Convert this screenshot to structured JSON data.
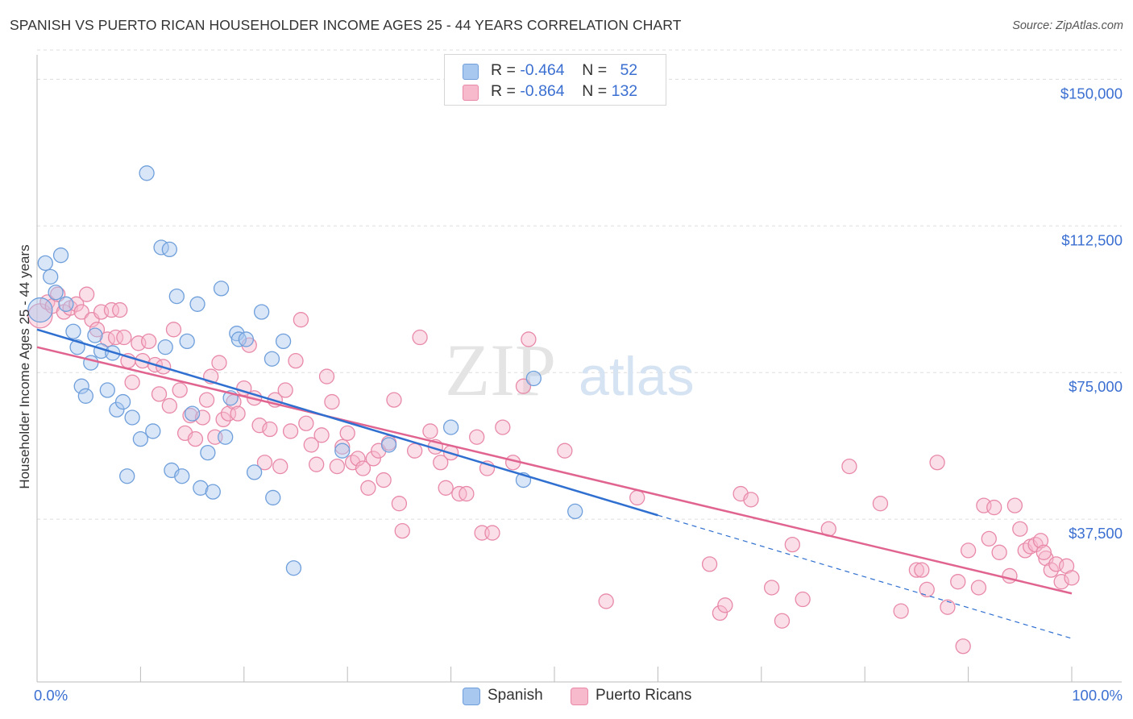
{
  "title": "SPANISH VS PUERTO RICAN HOUSEHOLDER INCOME AGES 25 - 44 YEARS CORRELATION CHART",
  "source": "Source: ZipAtlas.com",
  "watermark": {
    "zip": "ZIP",
    "atlas": "atlas"
  },
  "legend": {
    "rows": [
      {
        "r_label": "R =",
        "r_value": "-0.464",
        "n_label": "N =",
        "n_value": "52",
        "color": "#a8c8f0",
        "border": "#6f9fdb"
      },
      {
        "r_label": "R =",
        "r_value": "-0.864",
        "n_label": "N =",
        "n_value": "132",
        "color": "#f7b9cc",
        "border": "#e889a8"
      }
    ],
    "bottom": [
      {
        "name": "Spanish",
        "color": "#a8c8f0",
        "border": "#6f9fdb"
      },
      {
        "name": "Puerto Ricans",
        "color": "#f7b9cc",
        "border": "#e889a8"
      }
    ]
  },
  "chart_data": {
    "type": "scatter",
    "title": "SPANISH VS PUERTO RICAN HOUSEHOLDER INCOME AGES 25 - 44 YEARS CORRELATION CHART",
    "xlabel": "",
    "ylabel": "Householder Income Ages 25 - 44 years",
    "xlim": [
      0,
      100
    ],
    "ylim": [
      0,
      157500
    ],
    "x_tick_labels": [
      "0.0%",
      "100.0%"
    ],
    "y_ticks": [
      37500,
      75000,
      112500,
      150000
    ],
    "y_tick_labels": [
      "$37,500",
      "$75,000",
      "$112,500",
      "$150,000"
    ],
    "grid": true,
    "legend_position": "top-center",
    "series": [
      {
        "name": "Spanish",
        "color": "#6f9fdb",
        "fill": "#a8c8f0",
        "trend_color": "#2f6fd0",
        "trend": {
          "x0": 0,
          "y0": 86000,
          "x1": 60,
          "y1": 38500,
          "dash_to_x": 100,
          "dash_to_y": 7000
        },
        "points": [
          [
            0.3,
            91000
          ],
          [
            0.8,
            103000
          ],
          [
            1.3,
            99500
          ],
          [
            1.8,
            95500
          ],
          [
            2.3,
            105000
          ],
          [
            2.8,
            92500
          ],
          [
            3.5,
            85500
          ],
          [
            3.9,
            81500
          ],
          [
            4.3,
            71500
          ],
          [
            4.7,
            69000
          ],
          [
            5.2,
            77500
          ],
          [
            5.6,
            84500
          ],
          [
            6.2,
            80500
          ],
          [
            6.8,
            70500
          ],
          [
            7.3,
            80000
          ],
          [
            7.7,
            65500
          ],
          [
            8.3,
            67500
          ],
          [
            8.7,
            48500
          ],
          [
            9.2,
            63500
          ],
          [
            10.0,
            58000
          ],
          [
            10.6,
            126000
          ],
          [
            11.2,
            60000
          ],
          [
            12.0,
            107000
          ],
          [
            12.4,
            81500
          ],
          [
            12.8,
            106500
          ],
          [
            13.0,
            50000
          ],
          [
            13.5,
            94500
          ],
          [
            14.0,
            48500
          ],
          [
            14.5,
            83000
          ],
          [
            15.0,
            64500
          ],
          [
            15.5,
            92500
          ],
          [
            15.8,
            45500
          ],
          [
            16.5,
            54500
          ],
          [
            17.0,
            44500
          ],
          [
            17.8,
            96500
          ],
          [
            18.2,
            58500
          ],
          [
            18.7,
            68500
          ],
          [
            19.3,
            85000
          ],
          [
            19.5,
            83500
          ],
          [
            20.2,
            83500
          ],
          [
            21.0,
            49500
          ],
          [
            21.7,
            90500
          ],
          [
            22.7,
            78500
          ],
          [
            22.8,
            43000
          ],
          [
            23.8,
            83000
          ],
          [
            24.8,
            25000
          ],
          [
            29.5,
            55000
          ],
          [
            34.0,
            56500
          ],
          [
            40.0,
            61000
          ],
          [
            47.0,
            47500
          ],
          [
            48.0,
            73500
          ],
          [
            52.0,
            39500
          ]
        ]
      },
      {
        "name": "Puerto Ricans",
        "color": "#e889a8",
        "fill": "#f7b9cc",
        "trend_color": "#e0648f",
        "trend": {
          "x0": 0,
          "y0": 81500,
          "x1": 100,
          "y1": 18500
        },
        "points": [
          [
            0.3,
            89500
          ],
          [
            1.0,
            93000
          ],
          [
            1.5,
            92000
          ],
          [
            2.0,
            95000
          ],
          [
            2.6,
            90500
          ],
          [
            3.2,
            91500
          ],
          [
            3.8,
            92500
          ],
          [
            4.3,
            90500
          ],
          [
            4.8,
            95000
          ],
          [
            5.3,
            88500
          ],
          [
            5.8,
            86000
          ],
          [
            6.2,
            90500
          ],
          [
            6.8,
            83500
          ],
          [
            7.2,
            91000
          ],
          [
            7.6,
            84000
          ],
          [
            8.0,
            91000
          ],
          [
            8.4,
            84000
          ],
          [
            8.8,
            78000
          ],
          [
            9.2,
            72500
          ],
          [
            9.8,
            82500
          ],
          [
            10.2,
            78000
          ],
          [
            10.8,
            83000
          ],
          [
            11.4,
            77000
          ],
          [
            11.8,
            69500
          ],
          [
            12.2,
            76500
          ],
          [
            12.8,
            66500
          ],
          [
            13.2,
            86000
          ],
          [
            13.8,
            70500
          ],
          [
            14.3,
            59500
          ],
          [
            14.8,
            64000
          ],
          [
            15.3,
            58000
          ],
          [
            16.0,
            63500
          ],
          [
            16.4,
            68000
          ],
          [
            16.8,
            74000
          ],
          [
            17.2,
            58500
          ],
          [
            17.6,
            77500
          ],
          [
            18.0,
            63000
          ],
          [
            18.5,
            64500
          ],
          [
            19.0,
            67500
          ],
          [
            19.4,
            64500
          ],
          [
            20.0,
            71000
          ],
          [
            20.5,
            82000
          ],
          [
            21.0,
            68500
          ],
          [
            21.5,
            61500
          ],
          [
            22.0,
            52000
          ],
          [
            22.5,
            60500
          ],
          [
            23.0,
            68000
          ],
          [
            23.5,
            51000
          ],
          [
            24.0,
            70500
          ],
          [
            24.5,
            60000
          ],
          [
            25.0,
            78000
          ],
          [
            25.5,
            88500
          ],
          [
            26.0,
            62000
          ],
          [
            26.5,
            56500
          ],
          [
            27.0,
            51500
          ],
          [
            27.5,
            59000
          ],
          [
            28.0,
            74000
          ],
          [
            28.5,
            67500
          ],
          [
            29.0,
            51000
          ],
          [
            29.5,
            56000
          ],
          [
            30.0,
            59500
          ],
          [
            30.5,
            52000
          ],
          [
            31.0,
            53000
          ],
          [
            31.5,
            50500
          ],
          [
            32.0,
            45500
          ],
          [
            32.5,
            53000
          ],
          [
            33.0,
            55000
          ],
          [
            33.5,
            47500
          ],
          [
            34.0,
            57000
          ],
          [
            34.5,
            68000
          ],
          [
            35.0,
            41500
          ],
          [
            35.3,
            34500
          ],
          [
            36.5,
            55000
          ],
          [
            37.0,
            84000
          ],
          [
            38.0,
            60000
          ],
          [
            38.5,
            56000
          ],
          [
            39.0,
            52000
          ],
          [
            39.5,
            45500
          ],
          [
            40.0,
            54500
          ],
          [
            40.8,
            44000
          ],
          [
            41.5,
            44000
          ],
          [
            42.5,
            58500
          ],
          [
            43.0,
            34000
          ],
          [
            43.5,
            50500
          ],
          [
            44.0,
            34000
          ],
          [
            45.0,
            61000
          ],
          [
            46.0,
            52000
          ],
          [
            47.0,
            71500
          ],
          [
            47.5,
            83500
          ],
          [
            51.0,
            55000
          ],
          [
            55.0,
            16500
          ],
          [
            58.0,
            43000
          ],
          [
            65.0,
            26000
          ],
          [
            66.0,
            13500
          ],
          [
            66.5,
            15500
          ],
          [
            68.0,
            44000
          ],
          [
            69.0,
            42500
          ],
          [
            71.0,
            20000
          ],
          [
            72.0,
            11500
          ],
          [
            73.0,
            31000
          ],
          [
            74.0,
            17000
          ],
          [
            76.5,
            35000
          ],
          [
            78.5,
            51000
          ],
          [
            81.5,
            41500
          ],
          [
            83.5,
            14000
          ],
          [
            85.0,
            24500
          ],
          [
            86.0,
            19500
          ],
          [
            87.0,
            52000
          ],
          [
            88.0,
            15000
          ],
          [
            89.0,
            21500
          ],
          [
            89.5,
            5000
          ],
          [
            90.0,
            29500
          ],
          [
            91.0,
            20000
          ],
          [
            91.5,
            41000
          ],
          [
            92.0,
            32500
          ],
          [
            92.5,
            40500
          ],
          [
            93.0,
            29000
          ],
          [
            94.0,
            23000
          ],
          [
            94.5,
            41000
          ],
          [
            95.0,
            35000
          ],
          [
            95.5,
            29500
          ],
          [
            96.0,
            30500
          ],
          [
            96.5,
            31000
          ],
          [
            97.0,
            32000
          ],
          [
            97.5,
            27500
          ],
          [
            98.0,
            24500
          ],
          [
            98.5,
            26000
          ],
          [
            99.0,
            21500
          ],
          [
            99.5,
            25500
          ],
          [
            100.0,
            22500
          ],
          [
            97.3,
            29000
          ],
          [
            85.5,
            24500
          ]
        ]
      }
    ]
  }
}
